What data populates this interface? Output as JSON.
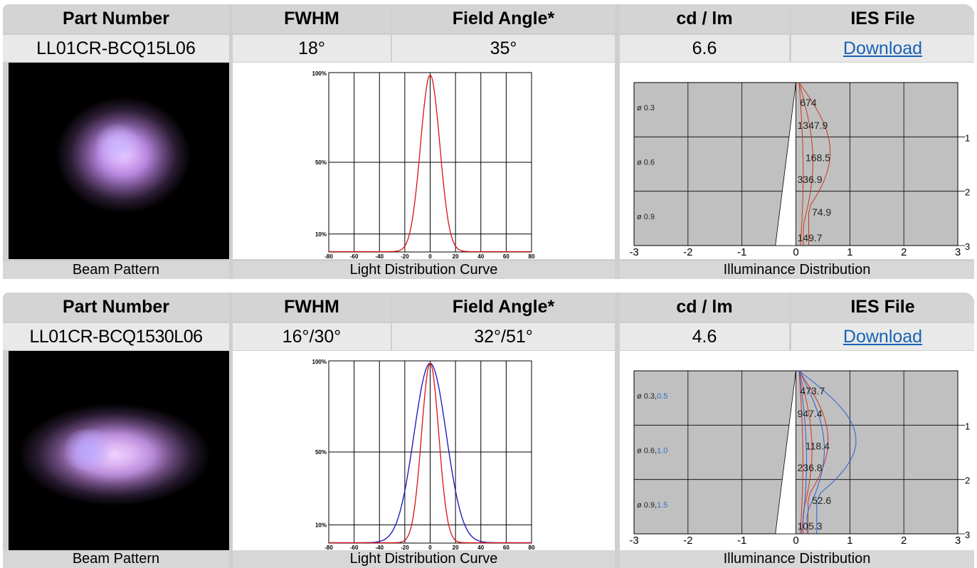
{
  "headers": {
    "part_number": "Part Number",
    "fwhm": "FWHM",
    "field_angle": "Field Angle*",
    "cd_lm": "cd / lm",
    "ies_file": "IES File"
  },
  "captions": {
    "beam": "Beam Pattern",
    "ldc": "Light Distribution Curve",
    "illuminance": "Illuminance Distribution"
  },
  "rows": [
    {
      "part_number": "LL01CR-BCQ15L06",
      "fwhm": "18°",
      "field_angle": "35°",
      "cd_lm": "6.6",
      "ies_link": "Download",
      "ldc": {
        "y_labels": [
          "100%",
          "50%",
          "10%"
        ],
        "x_labels": [
          "-80",
          "-60",
          "-40",
          "-20",
          "0",
          "20",
          "40",
          "60",
          "80"
        ],
        "curves": [
          {
            "color": "#d11",
            "sigma": 7.6
          }
        ]
      },
      "illum": {
        "x_labels": [
          "-3",
          "-2",
          "-1",
          "0",
          "1",
          "2",
          "3"
        ],
        "y_labels": [
          "1",
          "2",
          "3"
        ],
        "diameters": [
          {
            "label": "ø",
            "red": "0.3",
            "blue": ""
          },
          {
            "label": "ø",
            "red": "0.6",
            "blue": ""
          },
          {
            "label": "ø",
            "red": "0.9",
            "blue": ""
          }
        ],
        "values": [
          "674",
          "1347.9",
          "168.5",
          "336.9",
          "74.9",
          "149.7"
        ]
      }
    },
    {
      "part_number": "LL01CR-BCQ1530L06",
      "fwhm": "16°/30°",
      "field_angle": "32°/51°",
      "cd_lm": "4.6",
      "ies_link": "Download",
      "ldc": {
        "y_labels": [
          "100%",
          "50%",
          "10%"
        ],
        "x_labels": [
          "-80",
          "-60",
          "-40",
          "-20",
          "0",
          "20",
          "40",
          "60",
          "80"
        ],
        "curves": [
          {
            "color": "#11b",
            "sigma": 12.7
          },
          {
            "color": "#d11",
            "sigma": 6.8
          }
        ]
      },
      "illum": {
        "x_labels": [
          "-3",
          "-2",
          "-1",
          "0",
          "1",
          "2",
          "3"
        ],
        "y_labels": [
          "1",
          "2",
          "3"
        ],
        "diameters": [
          {
            "label": "ø",
            "red": "0.3",
            "blue": "0.5"
          },
          {
            "label": "ø",
            "red": "0.6",
            "blue": "1.0"
          },
          {
            "label": "ø",
            "red": "0.9",
            "blue": "1.5"
          }
        ],
        "values": [
          "473.7",
          "947.4",
          "118.4",
          "236.8",
          "52.6",
          "105.3"
        ]
      }
    }
  ]
}
